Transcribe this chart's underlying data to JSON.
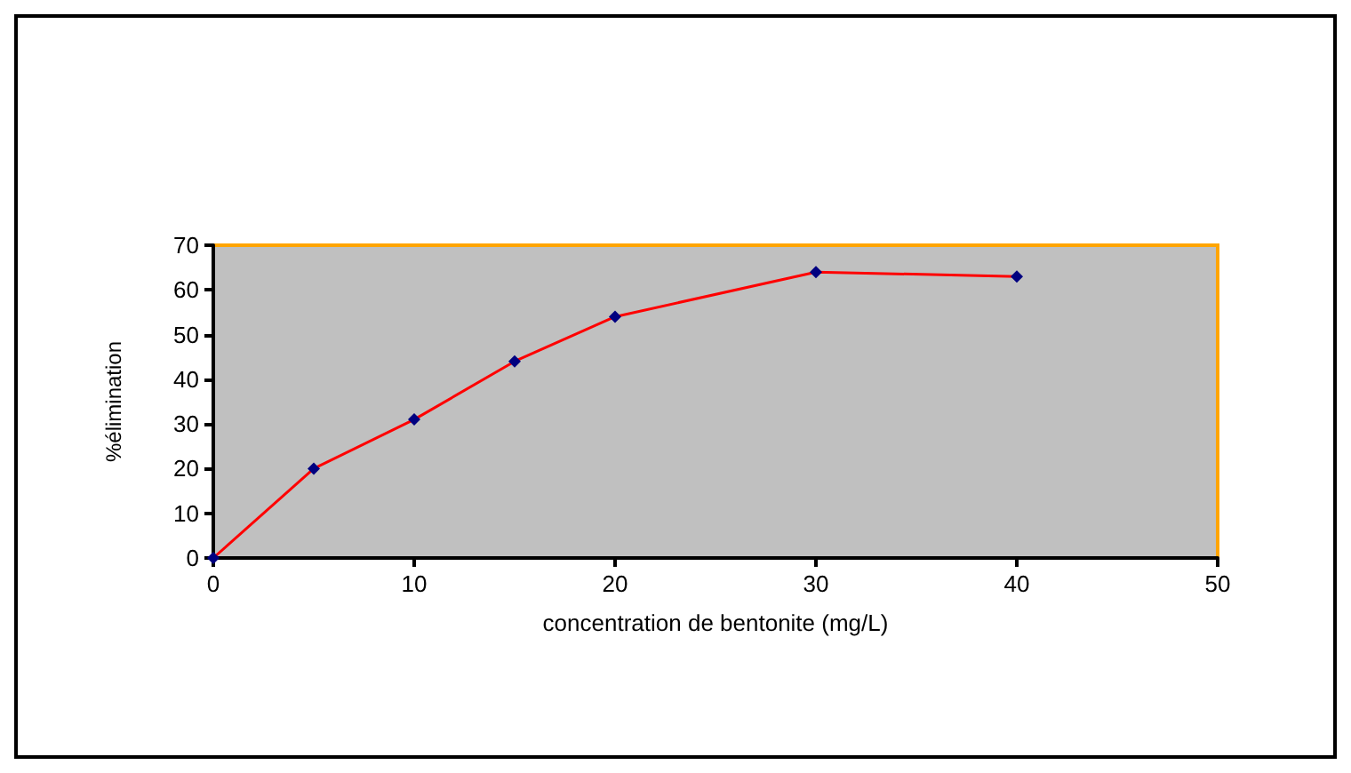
{
  "chart_data": {
    "type": "line",
    "xlabel": "concentration de bentonite (mg/L)",
    "ylabel": "%élimination",
    "x": [
      0,
      5,
      10,
      15,
      20,
      30,
      40
    ],
    "series": [
      {
        "color": "#ff0000",
        "values": [
          0,
          20,
          31,
          44,
          54,
          64,
          63
        ]
      }
    ],
    "xlim": [
      0,
      50
    ],
    "xticks": [
      0,
      10,
      20,
      30,
      40,
      50
    ],
    "ylim": [
      0,
      70
    ],
    "yticks": [
      0,
      10,
      20,
      30,
      40,
      50,
      60,
      70
    ],
    "grid": false,
    "marker": "diamond",
    "line_style": "solid"
  }
}
